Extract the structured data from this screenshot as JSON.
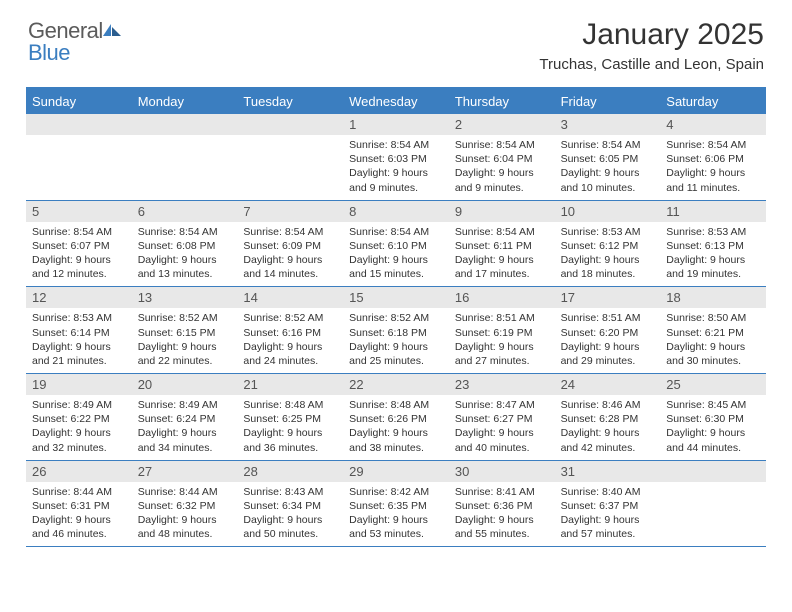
{
  "brand": {
    "word1": "General",
    "word2": "Blue"
  },
  "title": "January 2025",
  "location": "Truchas, Castille and Leon, Spain",
  "dayNames": [
    "Sunday",
    "Monday",
    "Tuesday",
    "Wednesday",
    "Thursday",
    "Friday",
    "Saturday"
  ],
  "colors": {
    "accent": "#3b7ec0",
    "dateBar": "#e8e8e8",
    "text": "#333333",
    "logoGray": "#5b5b5b"
  },
  "weeks": [
    [
      {
        "date": "",
        "sunrise": "",
        "sunset": "",
        "daylight": ""
      },
      {
        "date": "",
        "sunrise": "",
        "sunset": "",
        "daylight": ""
      },
      {
        "date": "",
        "sunrise": "",
        "sunset": "",
        "daylight": ""
      },
      {
        "date": "1",
        "sunrise": "Sunrise: 8:54 AM",
        "sunset": "Sunset: 6:03 PM",
        "daylight": "Daylight: 9 hours and 9 minutes."
      },
      {
        "date": "2",
        "sunrise": "Sunrise: 8:54 AM",
        "sunset": "Sunset: 6:04 PM",
        "daylight": "Daylight: 9 hours and 9 minutes."
      },
      {
        "date": "3",
        "sunrise": "Sunrise: 8:54 AM",
        "sunset": "Sunset: 6:05 PM",
        "daylight": "Daylight: 9 hours and 10 minutes."
      },
      {
        "date": "4",
        "sunrise": "Sunrise: 8:54 AM",
        "sunset": "Sunset: 6:06 PM",
        "daylight": "Daylight: 9 hours and 11 minutes."
      }
    ],
    [
      {
        "date": "5",
        "sunrise": "Sunrise: 8:54 AM",
        "sunset": "Sunset: 6:07 PM",
        "daylight": "Daylight: 9 hours and 12 minutes."
      },
      {
        "date": "6",
        "sunrise": "Sunrise: 8:54 AM",
        "sunset": "Sunset: 6:08 PM",
        "daylight": "Daylight: 9 hours and 13 minutes."
      },
      {
        "date": "7",
        "sunrise": "Sunrise: 8:54 AM",
        "sunset": "Sunset: 6:09 PM",
        "daylight": "Daylight: 9 hours and 14 minutes."
      },
      {
        "date": "8",
        "sunrise": "Sunrise: 8:54 AM",
        "sunset": "Sunset: 6:10 PM",
        "daylight": "Daylight: 9 hours and 15 minutes."
      },
      {
        "date": "9",
        "sunrise": "Sunrise: 8:54 AM",
        "sunset": "Sunset: 6:11 PM",
        "daylight": "Daylight: 9 hours and 17 minutes."
      },
      {
        "date": "10",
        "sunrise": "Sunrise: 8:53 AM",
        "sunset": "Sunset: 6:12 PM",
        "daylight": "Daylight: 9 hours and 18 minutes."
      },
      {
        "date": "11",
        "sunrise": "Sunrise: 8:53 AM",
        "sunset": "Sunset: 6:13 PM",
        "daylight": "Daylight: 9 hours and 19 minutes."
      }
    ],
    [
      {
        "date": "12",
        "sunrise": "Sunrise: 8:53 AM",
        "sunset": "Sunset: 6:14 PM",
        "daylight": "Daylight: 9 hours and 21 minutes."
      },
      {
        "date": "13",
        "sunrise": "Sunrise: 8:52 AM",
        "sunset": "Sunset: 6:15 PM",
        "daylight": "Daylight: 9 hours and 22 minutes."
      },
      {
        "date": "14",
        "sunrise": "Sunrise: 8:52 AM",
        "sunset": "Sunset: 6:16 PM",
        "daylight": "Daylight: 9 hours and 24 minutes."
      },
      {
        "date": "15",
        "sunrise": "Sunrise: 8:52 AM",
        "sunset": "Sunset: 6:18 PM",
        "daylight": "Daylight: 9 hours and 25 minutes."
      },
      {
        "date": "16",
        "sunrise": "Sunrise: 8:51 AM",
        "sunset": "Sunset: 6:19 PM",
        "daylight": "Daylight: 9 hours and 27 minutes."
      },
      {
        "date": "17",
        "sunrise": "Sunrise: 8:51 AM",
        "sunset": "Sunset: 6:20 PM",
        "daylight": "Daylight: 9 hours and 29 minutes."
      },
      {
        "date": "18",
        "sunrise": "Sunrise: 8:50 AM",
        "sunset": "Sunset: 6:21 PM",
        "daylight": "Daylight: 9 hours and 30 minutes."
      }
    ],
    [
      {
        "date": "19",
        "sunrise": "Sunrise: 8:49 AM",
        "sunset": "Sunset: 6:22 PM",
        "daylight": "Daylight: 9 hours and 32 minutes."
      },
      {
        "date": "20",
        "sunrise": "Sunrise: 8:49 AM",
        "sunset": "Sunset: 6:24 PM",
        "daylight": "Daylight: 9 hours and 34 minutes."
      },
      {
        "date": "21",
        "sunrise": "Sunrise: 8:48 AM",
        "sunset": "Sunset: 6:25 PM",
        "daylight": "Daylight: 9 hours and 36 minutes."
      },
      {
        "date": "22",
        "sunrise": "Sunrise: 8:48 AM",
        "sunset": "Sunset: 6:26 PM",
        "daylight": "Daylight: 9 hours and 38 minutes."
      },
      {
        "date": "23",
        "sunrise": "Sunrise: 8:47 AM",
        "sunset": "Sunset: 6:27 PM",
        "daylight": "Daylight: 9 hours and 40 minutes."
      },
      {
        "date": "24",
        "sunrise": "Sunrise: 8:46 AM",
        "sunset": "Sunset: 6:28 PM",
        "daylight": "Daylight: 9 hours and 42 minutes."
      },
      {
        "date": "25",
        "sunrise": "Sunrise: 8:45 AM",
        "sunset": "Sunset: 6:30 PM",
        "daylight": "Daylight: 9 hours and 44 minutes."
      }
    ],
    [
      {
        "date": "26",
        "sunrise": "Sunrise: 8:44 AM",
        "sunset": "Sunset: 6:31 PM",
        "daylight": "Daylight: 9 hours and 46 minutes."
      },
      {
        "date": "27",
        "sunrise": "Sunrise: 8:44 AM",
        "sunset": "Sunset: 6:32 PM",
        "daylight": "Daylight: 9 hours and 48 minutes."
      },
      {
        "date": "28",
        "sunrise": "Sunrise: 8:43 AM",
        "sunset": "Sunset: 6:34 PM",
        "daylight": "Daylight: 9 hours and 50 minutes."
      },
      {
        "date": "29",
        "sunrise": "Sunrise: 8:42 AM",
        "sunset": "Sunset: 6:35 PM",
        "daylight": "Daylight: 9 hours and 53 minutes."
      },
      {
        "date": "30",
        "sunrise": "Sunrise: 8:41 AM",
        "sunset": "Sunset: 6:36 PM",
        "daylight": "Daylight: 9 hours and 55 minutes."
      },
      {
        "date": "31",
        "sunrise": "Sunrise: 8:40 AM",
        "sunset": "Sunset: 6:37 PM",
        "daylight": "Daylight: 9 hours and 57 minutes."
      },
      {
        "date": "",
        "sunrise": "",
        "sunset": "",
        "daylight": ""
      }
    ]
  ]
}
